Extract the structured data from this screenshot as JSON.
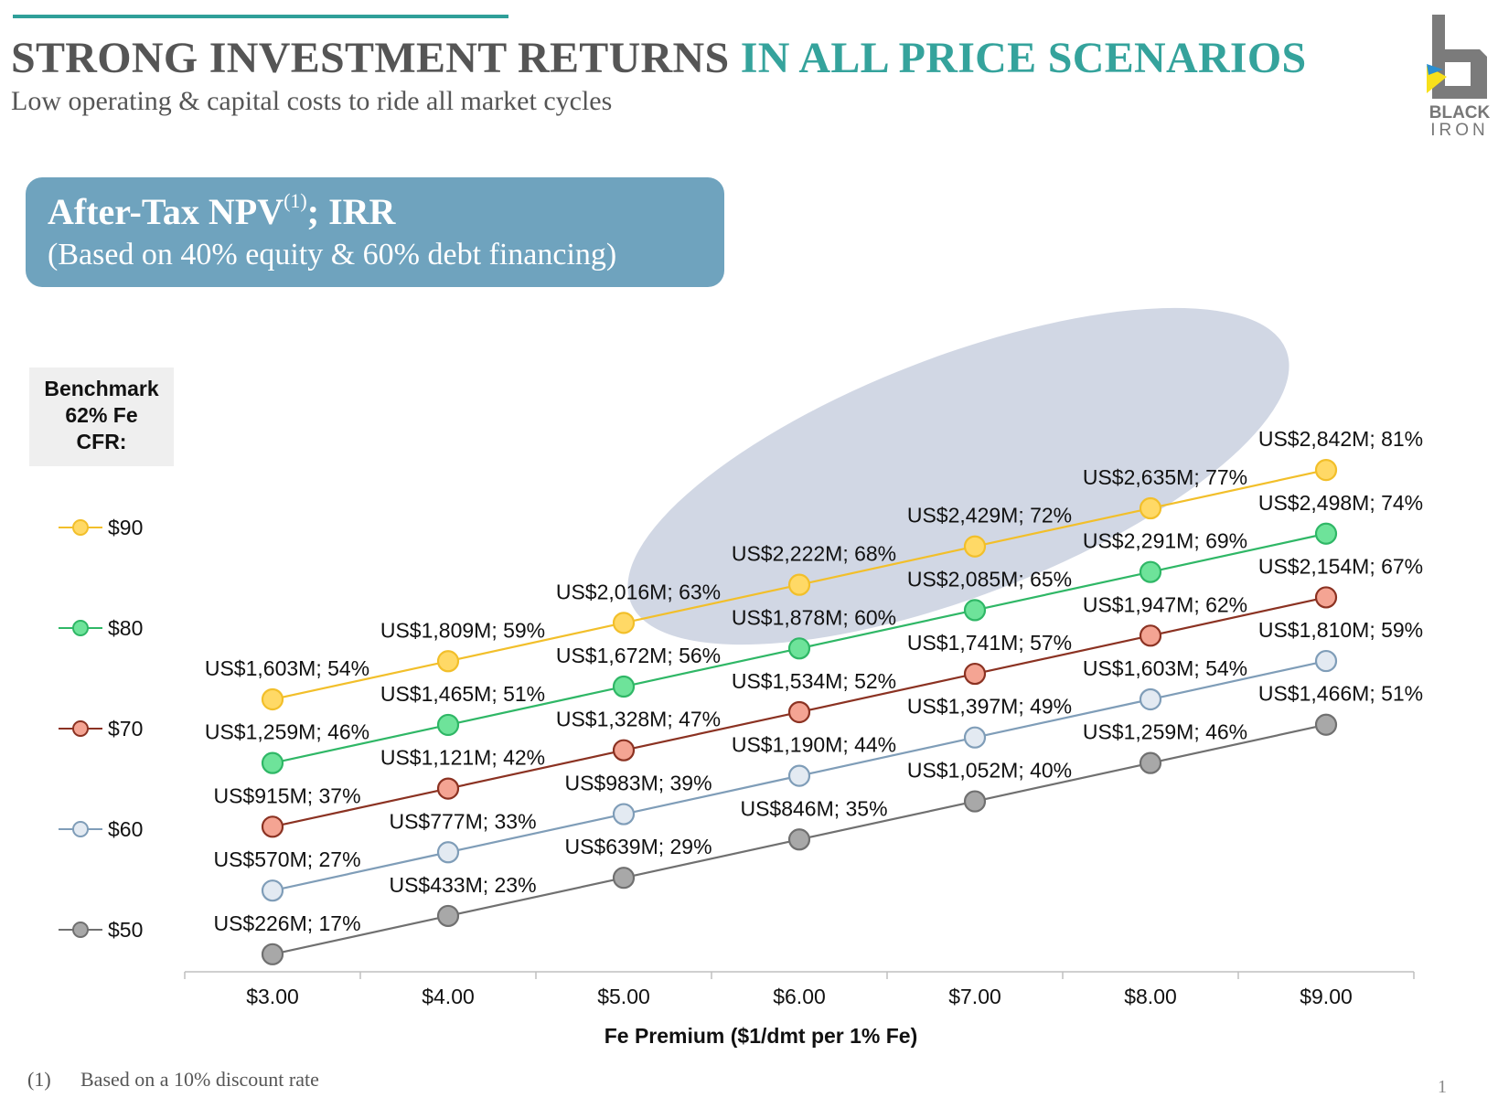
{
  "header": {
    "title_dark": "STRONG INVESTMENT RETURNS",
    "title_teal": "IN ALL PRICE SCENARIOS",
    "subtitle": "Low operating & capital costs to ride all market cycles",
    "logo_line1": "BLACK",
    "logo_line2": "IRON"
  },
  "npv_box": {
    "title": "After-Tax NPV",
    "superscript": "(1)",
    "title_suffix": "; IRR",
    "subtitle": "(Based on 40% equity & 60% debt financing)"
  },
  "benchmark": {
    "line1": "Benchmark",
    "line2": "62% Fe",
    "line3": "CFR:"
  },
  "footnote": {
    "number": "(1)",
    "text": "Based on a 10% discount rate"
  },
  "page_number": "1",
  "colors": {
    "title_teal": "#35a39c",
    "box_blue": "#6fa3be",
    "ellipse": "#c9d0df"
  },
  "chart_data": {
    "type": "line",
    "xlabel": "Fe Premium ($1/dmt per 1% Fe)",
    "ylabel": "",
    "categories": [
      "$3.00",
      "$4.00",
      "$5.00",
      "$6.00",
      "$7.00",
      "$8.00",
      "$9.00"
    ],
    "x": [
      3,
      4,
      5,
      6,
      7,
      8,
      9
    ],
    "ylim": [
      0,
      3000
    ],
    "grid": false,
    "legend_position": "left",
    "legend_title": "Benchmark 62% Fe CFR:",
    "highlight": "shaded ellipse over mid-range scenarios",
    "series": [
      {
        "name": "$90",
        "line_color": "#f2bf2a",
        "fill_color": "#ffd966",
        "values": [
          1603,
          1809,
          2016,
          2222,
          2429,
          2635,
          2842
        ],
        "labels": [
          "US$1,603M; 54%",
          "US$1,809M; 59%",
          "US$2,016M; 63%",
          "US$2,222M; 68%",
          "US$2,429M; 72%",
          "US$2,635M; 77%",
          "US$2,842M; 81%"
        ]
      },
      {
        "name": "$80",
        "line_color": "#2fb766",
        "fill_color": "#6ee39a",
        "values": [
          1259,
          1465,
          1672,
          1878,
          2085,
          2291,
          2498
        ],
        "labels": [
          "US$1,259M; 46%",
          "US$1,465M; 51%",
          "US$1,672M; 56%",
          "US$1,878M; 60%",
          "US$2,085M; 65%",
          "US$2,291M; 69%",
          "US$2,498M; 74%"
        ]
      },
      {
        "name": "$70",
        "line_color": "#8b3222",
        "fill_color": "#f4a493",
        "values": [
          915,
          1121,
          1328,
          1534,
          1741,
          1947,
          2154
        ],
        "labels": [
          "US$915M; 37%",
          "US$1,121M; 42%",
          "US$1,328M; 47%",
          "US$1,534M; 52%",
          "US$1,741M; 57%",
          "US$1,947M; 62%",
          "US$2,154M; 67%"
        ]
      },
      {
        "name": "$60",
        "line_color": "#7f9db8",
        "fill_color": "#e3eaf2",
        "values": [
          570,
          777,
          983,
          1190,
          1397,
          1603,
          1810
        ],
        "labels": [
          "US$570M; 27%",
          "US$777M; 33%",
          "US$983M; 39%",
          "US$1,190M; 44%",
          "US$1,397M; 49%",
          "US$1,603M; 54%",
          "US$1,810M; 59%"
        ]
      },
      {
        "name": "$50",
        "line_color": "#707070",
        "fill_color": "#a8a8a8",
        "values": [
          226,
          433,
          639,
          846,
          1052,
          1259,
          1466
        ],
        "labels": [
          "US$226M; 17%",
          "US$433M; 23%",
          "US$639M; 29%",
          "US$846M; 35%",
          "US$1,052M; 40%",
          "US$1,259M; 46%",
          "US$1,466M; 51%"
        ]
      }
    ]
  }
}
